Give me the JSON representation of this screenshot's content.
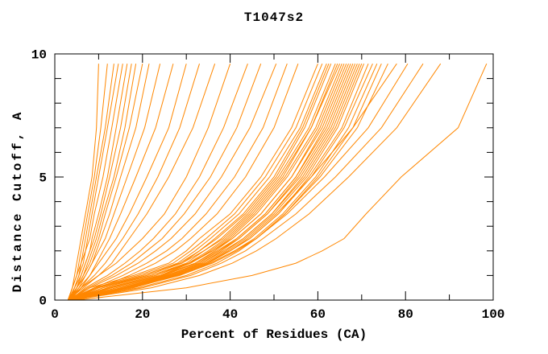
{
  "chart_data": {
    "type": "line",
    "title": "T1047s2",
    "xlabel": "Percent of Residues (CA)",
    "ylabel": "Distance Cutoff, A",
    "xlim": [
      0,
      100
    ],
    "ylim": [
      0,
      10
    ],
    "x_minor_ticks": [
      0,
      10,
      20,
      30,
      40,
      50,
      60,
      70,
      80,
      90,
      100
    ],
    "x_tick_labels": [
      0,
      20,
      40,
      60,
      80,
      100
    ],
    "y_minor_ticks": [
      0,
      1,
      2,
      3,
      4,
      5,
      6,
      7,
      8,
      9,
      10
    ],
    "y_tick_labels": [
      0,
      5,
      10
    ],
    "grid": false,
    "legend": "none",
    "line_color": "#ff8700",
    "frame_color": "#000000",
    "background_color": "#ffffff",
    "cutoffs": [
      0,
      0.5,
      1,
      1.5,
      2,
      2.5,
      3.5,
      5,
      7,
      9.6
    ],
    "series_percents": [
      [
        3,
        4,
        4.5,
        5,
        5.5,
        6,
        7,
        8.5,
        9.5,
        10
      ],
      [
        3,
        4,
        5,
        5.5,
        6,
        6.5,
        7.5,
        9,
        10.5,
        12
      ],
      [
        3.5,
        4.5,
        5.5,
        6,
        6.5,
        7,
        8,
        9.5,
        11.5,
        13.5
      ],
      [
        3,
        4.5,
        5.5,
        6.5,
        7,
        7.5,
        8.5,
        10,
        12,
        14.5
      ],
      [
        3,
        4,
        5,
        6,
        7,
        8,
        9,
        11,
        13,
        15.5
      ],
      [
        3.5,
        5,
        6,
        7,
        8,
        8.5,
        10,
        12,
        14,
        16.5
      ],
      [
        3,
        4.5,
        6,
        7,
        8,
        9,
        10.5,
        12.5,
        15,
        17.5
      ],
      [
        3.5,
        5,
        6.5,
        7.5,
        8.5,
        9.5,
        11,
        13.5,
        16,
        18.5
      ],
      [
        3,
        5,
        6.5,
        8,
        9,
        10,
        11.5,
        14,
        17,
        20
      ],
      [
        3.5,
        5.5,
        7,
        8.5,
        9.5,
        10.5,
        12.5,
        15,
        18.5,
        21.5
      ],
      [
        3,
        5,
        7,
        8.5,
        10,
        11.5,
        13.5,
        16.5,
        20.5,
        24
      ],
      [
        3.5,
        6,
        8,
        9.5,
        11,
        12.5,
        15,
        18.5,
        23,
        27
      ],
      [
        3,
        5.5,
        8,
        10,
        12,
        14,
        17,
        21,
        26,
        30
      ],
      [
        3.5,
        6,
        9,
        11.5,
        13.5,
        15.5,
        19,
        23.5,
        28.5,
        33
      ],
      [
        3,
        6.5,
        10,
        13,
        15,
        17,
        21,
        26,
        31.5,
        36.5
      ],
      [
        3,
        6,
        10,
        14,
        17,
        20,
        25,
        30,
        35,
        40
      ],
      [
        3.5,
        7,
        12,
        16,
        19.5,
        22.5,
        27.5,
        33,
        38.5,
        44
      ],
      [
        3,
        7.5,
        13,
        17.5,
        21,
        24.5,
        29.5,
        35.5,
        41.5,
        47
      ],
      [
        3.5,
        8,
        14,
        19,
        23,
        26.5,
        32,
        38,
        44.5,
        50.5
      ],
      [
        3,
        9,
        15.5,
        21,
        25.5,
        29,
        34.5,
        41,
        47.5,
        53
      ],
      [
        3.5,
        10,
        17,
        23,
        27.5,
        31,
        37,
        43.5,
        50,
        55.5
      ],
      [
        3,
        8,
        18,
        26,
        30,
        33,
        40,
        47,
        54,
        60
      ],
      [
        3.5,
        9,
        19,
        27,
        31,
        34.5,
        41,
        48,
        55,
        61
      ],
      [
        3,
        10,
        20,
        28,
        32,
        35.5,
        42,
        49,
        56,
        62
      ],
      [
        4,
        11,
        21,
        29,
        33,
        36.5,
        43,
        50,
        56.5,
        62.5
      ],
      [
        3,
        9.5,
        20,
        28.5,
        33,
        37,
        43.5,
        50.5,
        57,
        63
      ],
      [
        3.5,
        11,
        22,
        30,
        34,
        38,
        44,
        51,
        58,
        64
      ],
      [
        4,
        12,
        23,
        30.5,
        35,
        39,
        45,
        52,
        58.5,
        64.5
      ],
      [
        3,
        10,
        21,
        29,
        34,
        38.5,
        44.5,
        51.5,
        58.5,
        65
      ],
      [
        4,
        13,
        24,
        31,
        35.5,
        39.5,
        45.5,
        52.5,
        59.5,
        65.5
      ],
      [
        3.5,
        12,
        23,
        31,
        36,
        40,
        46,
        53,
        60,
        66
      ],
      [
        4,
        14,
        25,
        32,
        36.5,
        40.5,
        47,
        54,
        60.5,
        66.5
      ],
      [
        3,
        11,
        22,
        30.5,
        36,
        40.5,
        47,
        54,
        61,
        67
      ],
      [
        4.5,
        14,
        25.5,
        33,
        37.5,
        41.5,
        48,
        55,
        61.5,
        67.5
      ],
      [
        3.5,
        12.5,
        24,
        32,
        37,
        41.5,
        48,
        55,
        62,
        68
      ],
      [
        4,
        15,
        26,
        33.5,
        38,
        42,
        48.5,
        55.5,
        62.5,
        68.5
      ],
      [
        3.5,
        13,
        24.5,
        32.5,
        37.5,
        42,
        48.5,
        56,
        63,
        69
      ],
      [
        4.5,
        15.5,
        26.5,
        34,
        39,
        43,
        49.5,
        56.5,
        63.5,
        69.5
      ],
      [
        3.5,
        14,
        25.5,
        33.5,
        38.5,
        43,
        49.5,
        57,
        64,
        70
      ],
      [
        4,
        16,
        27,
        34.5,
        39.5,
        43.5,
        50,
        57.5,
        64.5,
        70.5
      ],
      [
        4.5,
        16.5,
        27.5,
        35,
        40,
        44.5,
        51,
        58,
        65.5,
        71.5
      ],
      [
        4,
        15,
        26.5,
        34.5,
        40,
        44.5,
        51,
        58.5,
        66,
        72.5
      ],
      [
        4.5,
        17,
        28,
        35.5,
        41,
        45.5,
        52,
        59.5,
        67,
        73.5
      ],
      [
        5,
        17.5,
        28.5,
        36,
        41.5,
        46,
        52.5,
        60,
        68,
        74.5
      ],
      [
        4,
        16,
        27.5,
        35.5,
        41,
        46,
        52.5,
        60.5,
        69,
        76
      ],
      [
        4,
        18,
        28,
        35,
        40,
        44,
        50.5,
        58.5,
        68,
        78
      ],
      [
        4.5,
        19,
        30,
        37,
        42,
        46,
        53,
        61.5,
        71.5,
        80.5
      ],
      [
        4,
        20,
        31,
        38,
        43.5,
        47.5,
        55,
        64,
        74.5,
        84
      ],
      [
        4,
        22,
        33,
        40.5,
        46,
        50.5,
        58,
        67,
        78,
        88
      ],
      [
        5,
        30,
        45,
        55,
        61,
        66,
        71,
        79,
        92,
        98.5
      ]
    ]
  }
}
